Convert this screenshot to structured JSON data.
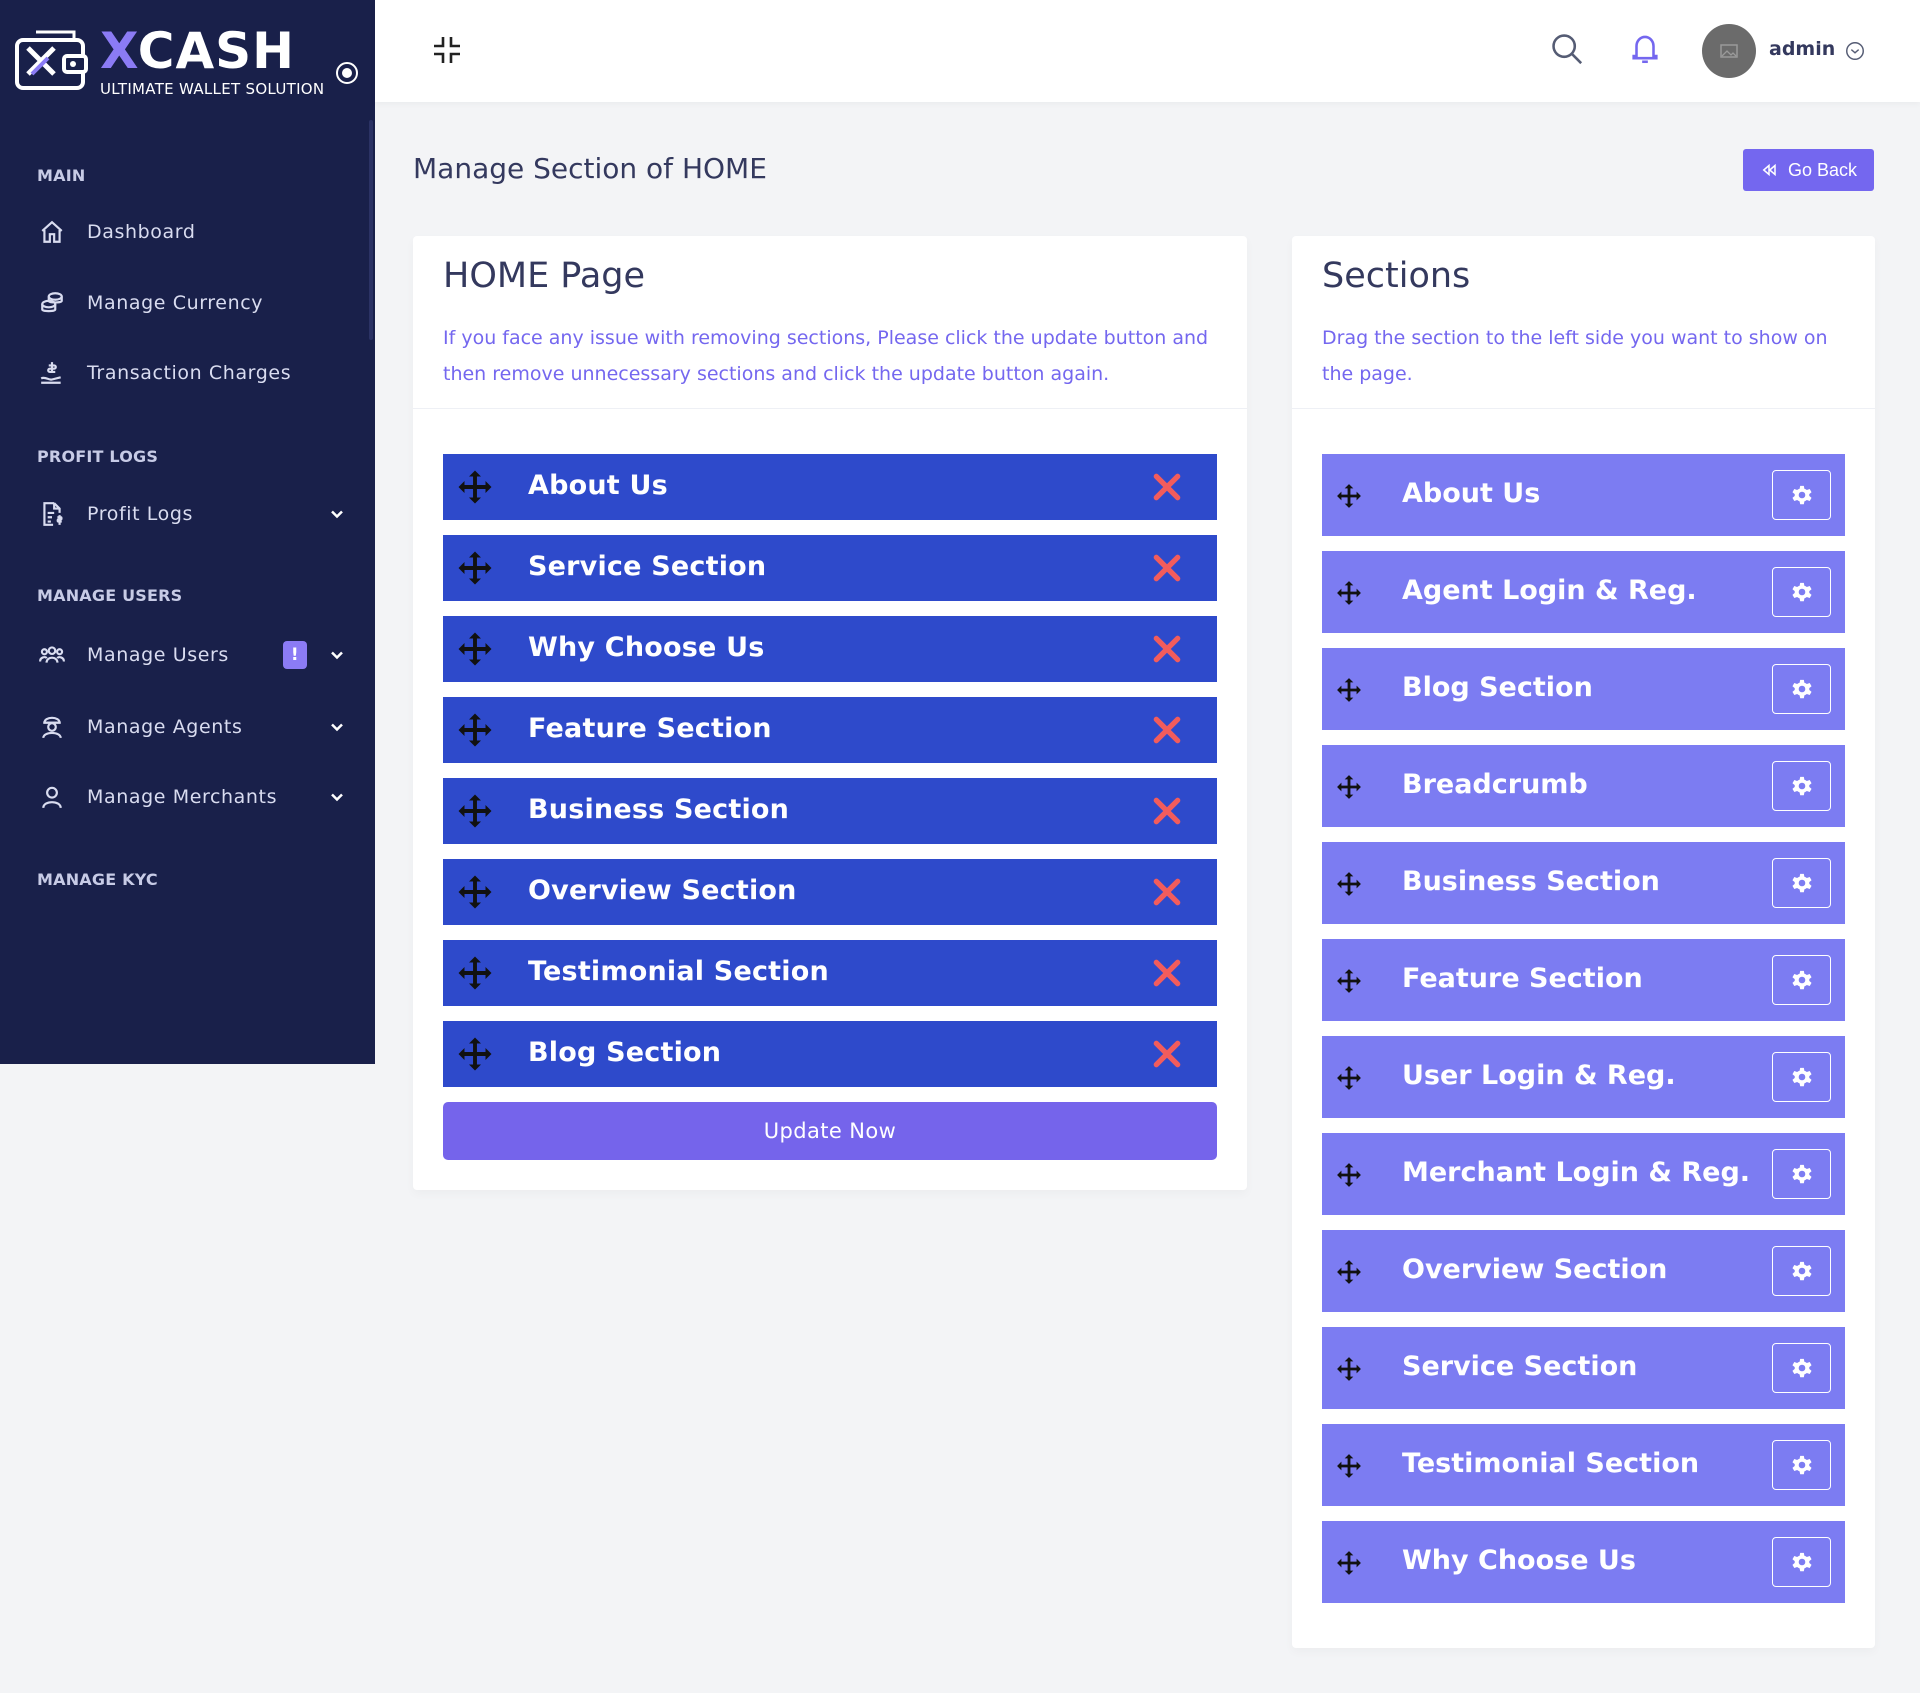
{
  "brand": {
    "name_x": "X",
    "name_rest": "CASH",
    "tagline": "ULTIMATE WALLET SOLUTION"
  },
  "sidebar": {
    "sections": [
      {
        "header": "MAIN"
      },
      {
        "header": "PROFIT LOGS"
      },
      {
        "header": "MANAGE USERS"
      },
      {
        "header": "MANAGE KYC"
      }
    ],
    "items": [
      {
        "label": "Dashboard",
        "icon": "home-icon"
      },
      {
        "label": "Manage Currency",
        "icon": "coins-icon"
      },
      {
        "label": "Transaction Charges",
        "icon": "hand-dollar-icon"
      },
      {
        "label": "Profit Logs",
        "icon": "file-dollar-icon"
      },
      {
        "label": "Manage Users",
        "icon": "users-icon",
        "badge": "!"
      },
      {
        "label": "Manage Agents",
        "icon": "agent-icon"
      },
      {
        "label": "Manage Merchants",
        "icon": "user-icon"
      }
    ]
  },
  "topbar": {
    "username": "admin"
  },
  "page": {
    "title": "Manage Section of HOME",
    "go_back_label": "Go Back"
  },
  "home_card": {
    "title": "HOME Page",
    "description": "If you face any issue with removing sections, Please click the update button and then remove unnecessary sections and click the update button again.",
    "sections": [
      "About Us",
      "Service Section",
      "Why Choose Us",
      "Feature Section",
      "Business Section",
      "Overview Section",
      "Testimonial Section",
      "Blog Section"
    ],
    "update_label": "Update Now"
  },
  "sections_card": {
    "title": "Sections",
    "description": "Drag the section to the left side you want to show on the page.",
    "items": [
      "About Us",
      "Agent Login & Reg.",
      "Blog Section",
      "Breadcrumb",
      "Business Section",
      "Feature Section",
      "User Login & Reg.",
      "Merchant Login & Reg.",
      "Overview Section",
      "Service Section",
      "Testimonial Section",
      "Why Choose Us"
    ]
  },
  "colors": {
    "sidebar_bg": "#19204a",
    "selected_section_bg": "#2e4acb",
    "available_section_bg": "#7c7cf2",
    "accent": "#7467ef",
    "remove": "#f25c5c"
  }
}
